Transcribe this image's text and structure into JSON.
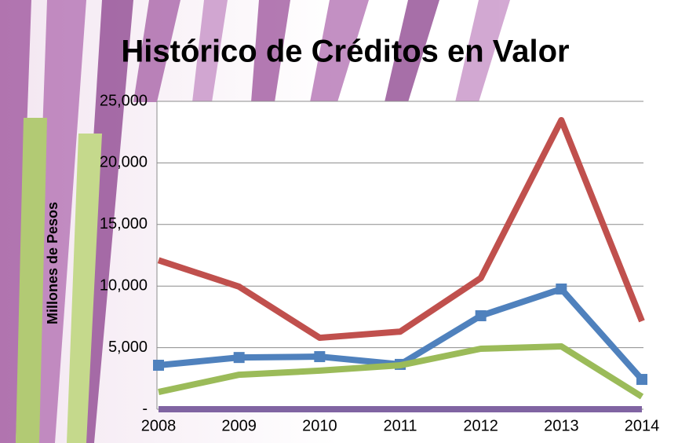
{
  "chart_data": {
    "type": "line",
    "title": "Histórico de Créditos en Valor",
    "y_label": "Millones de Pesos",
    "categories": [
      "2008",
      "2009",
      "2010",
      "2011",
      "2012",
      "2013",
      "2014"
    ],
    "series": [
      {
        "color": "#c0504d",
        "values": [
          12100,
          9950,
          5800,
          6300,
          10650,
          23470,
          7150
        ]
      },
      {
        "color": "#4f81bd",
        "marker": "square",
        "values": [
          3570,
          4200,
          4270,
          3640,
          7590,
          9760,
          2420
        ]
      },
      {
        "color": "#9bbb59",
        "values": [
          1400,
          2800,
          3130,
          3570,
          4910,
          5100,
          1020
        ]
      },
      {
        "color": "#8064a2",
        "values": [
          0,
          0,
          0,
          0,
          0,
          0,
          0
        ]
      }
    ],
    "ylim": [
      0,
      25000
    ],
    "yticks": [
      {
        "value": 0,
        "label": "-"
      },
      {
        "value": 5000,
        "label": "5,000"
      },
      {
        "value": 10000,
        "label": "10,000"
      },
      {
        "value": 15000,
        "label": "15,000"
      },
      {
        "value": 20000,
        "label": "20,000"
      },
      {
        "value": 25000,
        "label": "25,000"
      }
    ],
    "grid": true
  }
}
